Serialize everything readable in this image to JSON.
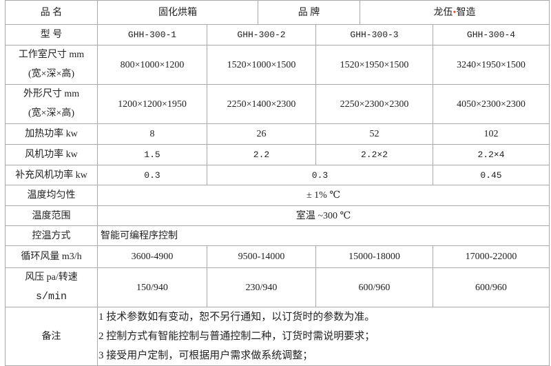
{
  "header": {
    "name_label": "品 名",
    "name_value": "固化烘箱",
    "brand_label": "品 牌",
    "brand_value_a": "龙伍",
    "brand_sep": "•",
    "brand_value_b": "智造"
  },
  "model": {
    "label": "型 号",
    "values": [
      "GHH-300-1",
      "GHH-300-2",
      "GHH-300-3",
      "GHH-300-4"
    ]
  },
  "chamber": {
    "label_1": "工作室尺寸 mm",
    "label_2": "(宽×深×高)",
    "values": [
      "800×1000×1200",
      "1520×1000×1500",
      "1520×1950×1500",
      "3240×1950×1500"
    ]
  },
  "outer": {
    "label_1": "外形尺寸 mm",
    "label_2": "(宽×深×高)",
    "values": [
      "1200×1200×1950",
      "2250×1400×2300",
      "2250×2300×2300",
      "4050×2300×2300"
    ]
  },
  "heating": {
    "label": "加热功率 kw",
    "values": [
      "8",
      "26",
      "52",
      "102"
    ]
  },
  "fan": {
    "label": "风机功率 kw",
    "values": [
      "1.5",
      "2.2",
      "2.2×2",
      "2.2×4"
    ]
  },
  "aux_fan": {
    "label": "补充风机功率 kw",
    "values": [
      "0.3",
      "0.3",
      "0.45"
    ]
  },
  "uniformity": {
    "label": "温度均匀性",
    "value": "± 1% ℃"
  },
  "range": {
    "label": "温度范围",
    "value": "室温 ~300 ℃"
  },
  "control": {
    "label": "控温方式",
    "value": "智能可编程序控制"
  },
  "airflow": {
    "label": "循环风量 m3/h",
    "values": [
      "3600-4900",
      "9500-14000",
      "15000-18000",
      "17000-22000"
    ]
  },
  "pressure": {
    "label_1": "风压 pa/转速",
    "label_2": "s/min",
    "values": [
      "150/940",
      "230/940",
      "600/960",
      "600/960"
    ]
  },
  "notes": {
    "label": "备注",
    "lines": [
      "1 技术参数如有变动，恕不另行通知，以订货时的参数为准。",
      "2 控制方式有智能控制与普通控制二种，订货时需说明要求；",
      "3 接受用户定制，可根据用户需求做系统调整；"
    ]
  }
}
